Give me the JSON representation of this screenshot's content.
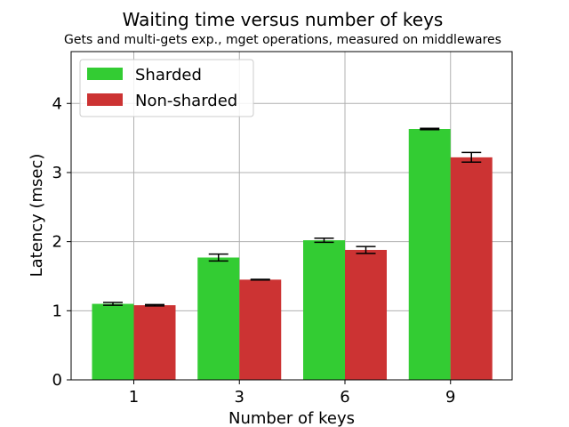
{
  "chart_data": {
    "type": "bar",
    "title": "Waiting time versus number of keys",
    "subtitle": "Gets and multi-gets exp., mget operations, measured on middlewares",
    "xlabel": "Number of keys",
    "ylabel": "Latency (msec)",
    "categories": [
      "1",
      "3",
      "6",
      "9"
    ],
    "ylim": [
      0,
      4.75
    ],
    "yticks": [
      "0",
      "1",
      "2",
      "3",
      "4"
    ],
    "grid": true,
    "legend_position": "top-left",
    "series": [
      {
        "name": "Sharded",
        "color": "#33cc33",
        "values": [
          1.1,
          1.77,
          2.02,
          3.63
        ],
        "errors": [
          0.02,
          0.05,
          0.03,
          0.01
        ]
      },
      {
        "name": "Non-sharded",
        "color": "#cc3333",
        "values": [
          1.08,
          1.45,
          1.88,
          3.22
        ],
        "errors": [
          0.01,
          0.005,
          0.05,
          0.07
        ]
      }
    ]
  }
}
